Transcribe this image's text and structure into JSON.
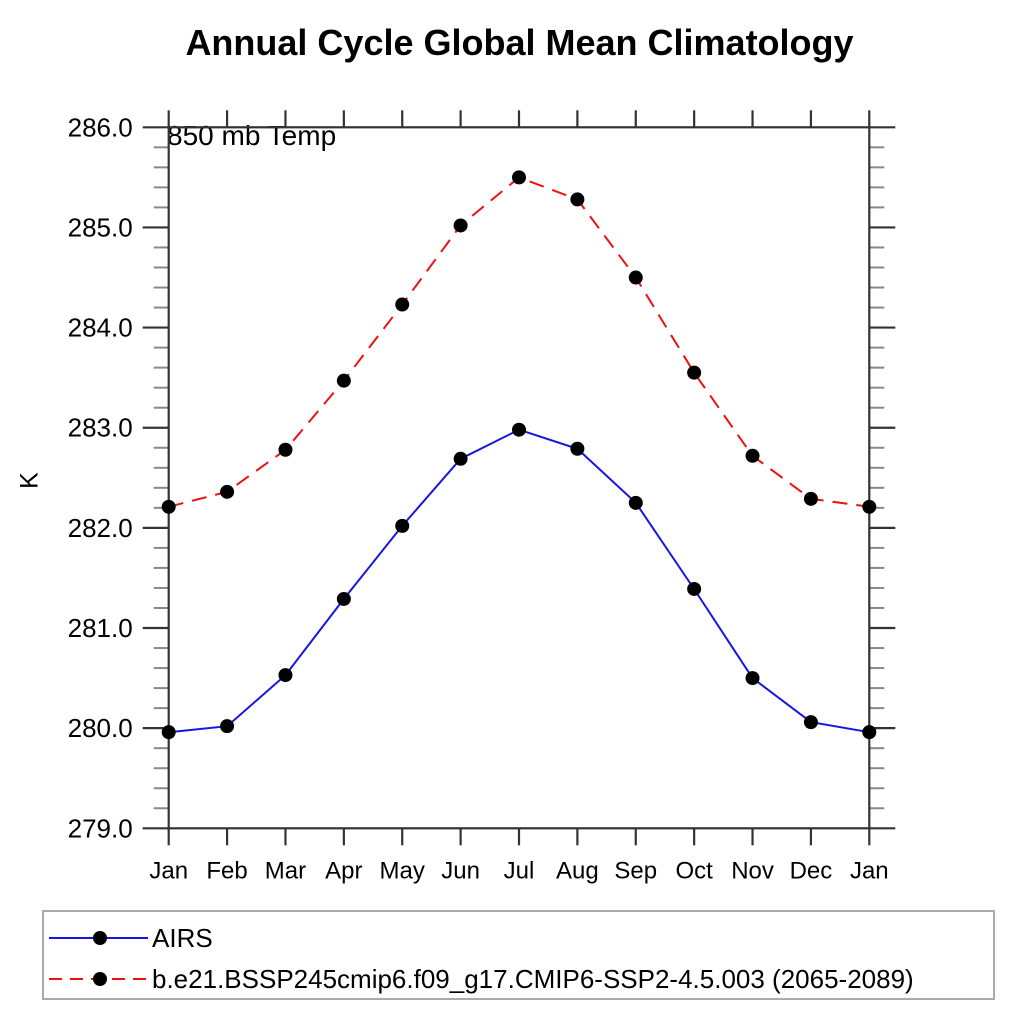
{
  "chart_data": {
    "type": "line",
    "title": "Annual Cycle Global Mean Climatology",
    "subtitle": "850 mb Temp",
    "ylabel": "K",
    "categories": [
      "Jan",
      "Feb",
      "Mar",
      "Apr",
      "May",
      "Jun",
      "Jul",
      "Aug",
      "Sep",
      "Oct",
      "Nov",
      "Dec",
      "Jan"
    ],
    "ylim": [
      279.0,
      286.0
    ],
    "ytick_step": 1.0,
    "yminor_step": 0.2,
    "ytick_format_decimals": 1,
    "grid": false,
    "legend_position": "bottom-left-box",
    "series": [
      {
        "name": "AIRS",
        "color": "#1515e6",
        "line_style": "solid",
        "marker": "circle",
        "marker_color": "#000000",
        "values": [
          279.96,
          280.02,
          280.53,
          281.29,
          282.02,
          282.69,
          282.98,
          282.79,
          282.25,
          281.39,
          280.5,
          280.06,
          279.96
        ]
      },
      {
        "name": "b.e21.BSSP245cmip6.f09_g17.CMIP6-SSP2-4.5.003 (2065-2089)",
        "color": "#ee1111",
        "line_style": "dashed",
        "marker": "circle",
        "marker_color": "#000000",
        "values": [
          282.21,
          282.36,
          282.78,
          283.47,
          284.23,
          285.02,
          285.5,
          285.28,
          284.5,
          283.55,
          282.72,
          282.29,
          282.21
        ]
      }
    ]
  },
  "colors": {
    "axis": "#333333",
    "minor_tick": "#888888",
    "text": "#000000",
    "legend_border": "#aaaaaa"
  }
}
